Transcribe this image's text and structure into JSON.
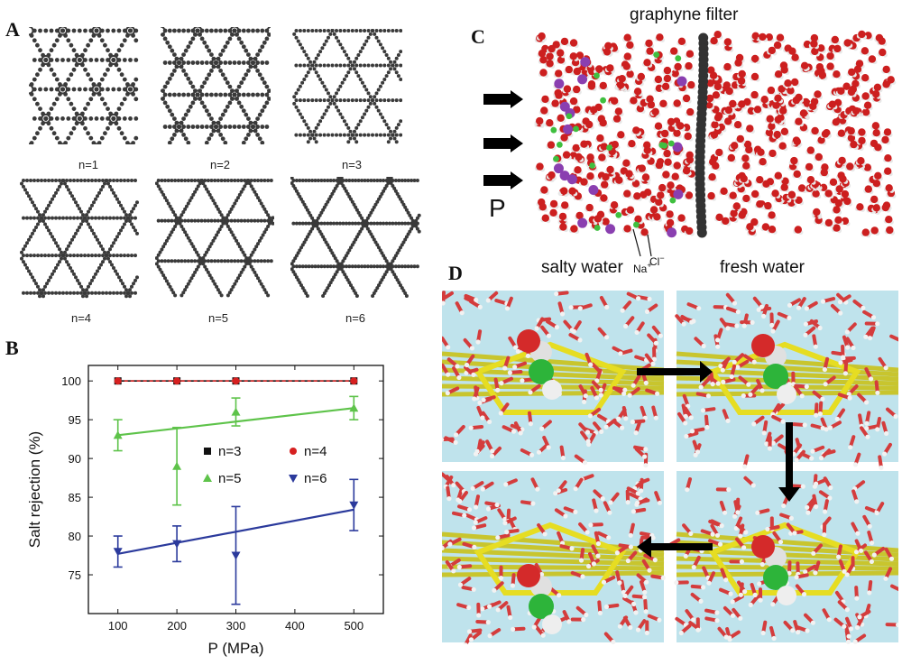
{
  "panels": {
    "a": {
      "letter": "A",
      "lattices": [
        {
          "label": "n=1",
          "n": 1
        },
        {
          "label": "n=2",
          "n": 2
        },
        {
          "label": "n=3",
          "n": 3
        },
        {
          "label": "n=4",
          "n": 4
        },
        {
          "label": "n=5",
          "n": 5
        },
        {
          "label": "n=6",
          "n": 6
        }
      ]
    },
    "b": {
      "letter": "B"
    },
    "c": {
      "letter": "C",
      "filter_label": "graphyne filter",
      "pressure_label": "P",
      "salty_label": "salty water",
      "fresh_label": "fresh water",
      "na_label": "Na",
      "na_sup": "+",
      "cl_label": "Cl",
      "cl_sup": "−",
      "colors": {
        "oxygen": "#cc1f1f",
        "hydrogen": "#e8e8e8",
        "sodium": "#8a3fb0",
        "chlorine": "#3fbf3f",
        "carbon": "#333333"
      }
    },
    "d": {
      "letter": "D",
      "colors": {
        "water_bg": "#bfe3ec",
        "sheet": "#c9c21a",
        "ion": "#2db43a"
      }
    }
  },
  "chart_data": {
    "type": "scatter",
    "xlabel": "P (MPa)",
    "ylabel": "Salt rejection (%)",
    "xlim": [
      50,
      550
    ],
    "ylim": [
      70,
      102
    ],
    "xticks": [
      100,
      200,
      300,
      400,
      500
    ],
    "yticks": [
      75,
      80,
      85,
      90,
      95,
      100
    ],
    "legend_position": "center-right",
    "series": [
      {
        "name": "n=3",
        "color": "#111111",
        "marker": "square",
        "fit": "line",
        "x": [
          100,
          200,
          300,
          500
        ],
        "y": [
          100,
          100,
          100,
          100
        ],
        "err": [
          0,
          0,
          0,
          0
        ]
      },
      {
        "name": "n=4",
        "color": "#d62020",
        "marker": "circle",
        "fit": "line",
        "x": [
          100,
          200,
          300,
          500
        ],
        "y": [
          100,
          100,
          100,
          100
        ],
        "err": [
          0,
          0,
          0,
          0
        ]
      },
      {
        "name": "n=5",
        "color": "#5ec34a",
        "marker": "triangle-up",
        "fit": "line",
        "x": [
          100,
          200,
          300,
          500
        ],
        "y": [
          93,
          89,
          96,
          96.5
        ],
        "err": [
          2,
          5,
          1.8,
          1.5
        ]
      },
      {
        "name": "n=6",
        "color": "#2b3a9c",
        "marker": "triangle-down",
        "fit": "line",
        "x": [
          100,
          200,
          300,
          500
        ],
        "y": [
          78,
          79,
          77.5,
          84
        ],
        "err": [
          2,
          2.3,
          6.3,
          3.3
        ]
      }
    ],
    "fits": [
      {
        "series": "n=5",
        "y_at_xmin": 93,
        "y_at_xmax": 96.5
      },
      {
        "series": "n=6",
        "y_at_xmin": 77.7,
        "y_at_xmax": 83.4
      }
    ]
  }
}
